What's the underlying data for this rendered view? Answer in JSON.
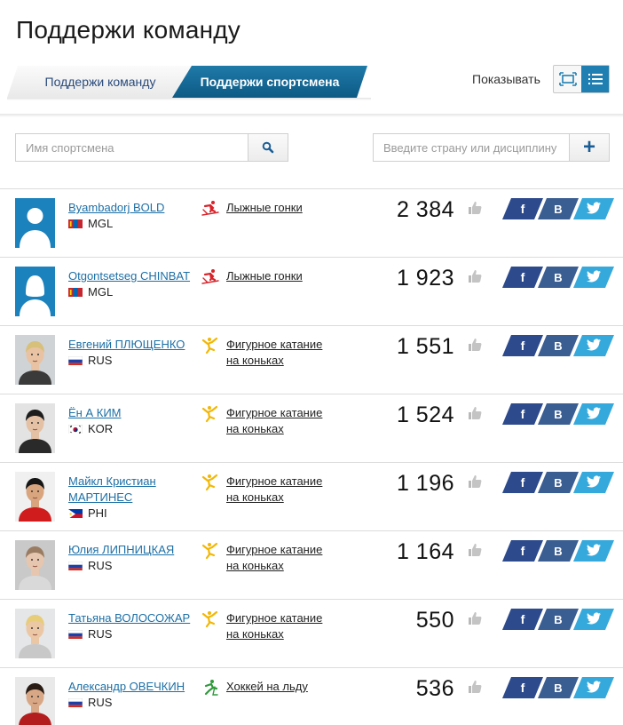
{
  "page": {
    "title": "Поддержи команду"
  },
  "tabs": {
    "team_label": "Поддержи команду",
    "athlete_label": "Поддержи спортсмена"
  },
  "view": {
    "show_label": "Показывать",
    "active": "list"
  },
  "search": {
    "placeholder": "Имя спортсмена",
    "value": ""
  },
  "filter": {
    "placeholder": "Введите страну или дисциплину",
    "value": "",
    "add_symbol": "+"
  },
  "share": {
    "facebook": "f",
    "vk": "B",
    "twitter": "twitter"
  },
  "athletes": [
    {
      "name": "Byambadorj BOLD",
      "country": "MGL",
      "sport": "Лыжные гонки",
      "sport_icon": "skiing-icon",
      "votes": "2 384",
      "avatar": "placeholder-male"
    },
    {
      "name": "Otgontsetseg CHINBAT",
      "country": "MGL",
      "sport": "Лыжные гонки",
      "sport_icon": "skiing-icon",
      "votes": "1 923",
      "avatar": "placeholder-female"
    },
    {
      "name": "Евгений ПЛЮЩЕНКО",
      "country": "RUS",
      "sport": "Фигурное катание на коньках",
      "sport_icon": "figure-skating-icon",
      "votes": "1 551",
      "avatar": "photo"
    },
    {
      "name": "Ён А КИМ",
      "country": "KOR",
      "sport": "Фигурное катание на коньках",
      "sport_icon": "figure-skating-icon",
      "votes": "1 524",
      "avatar": "photo"
    },
    {
      "name": "Майкл Кристиан МАРТИНЕС",
      "country": "PHI",
      "sport": "Фигурное катание на коньках",
      "sport_icon": "figure-skating-icon",
      "votes": "1 196",
      "avatar": "photo"
    },
    {
      "name": "Юлия ЛИПНИЦКАЯ",
      "country": "RUS",
      "sport": "Фигурное катание на коньках",
      "sport_icon": "figure-skating-icon",
      "votes": "1 164",
      "avatar": "photo"
    },
    {
      "name": "Татьяна ВОЛОСОЖАР",
      "country": "RUS",
      "sport": "Фигурное катание на коньках",
      "sport_icon": "figure-skating-icon",
      "votes": "550",
      "avatar": "photo"
    },
    {
      "name": "Александр ОВЕЧКИН",
      "country": "RUS",
      "sport": "Хоккей на льду",
      "sport_icon": "ice-hockey-icon",
      "votes": "536",
      "avatar": "photo"
    }
  ],
  "colors": {
    "accent": "#1f7fb3",
    "link": "#1c6fa6",
    "skiing_icon": "#d8232a",
    "figure_skating_icon": "#f2b705",
    "hockey_icon": "#2e9a3a",
    "facebook": "#2c4a8c",
    "vk": "#3a5d92",
    "twitter": "#36a9dc"
  }
}
